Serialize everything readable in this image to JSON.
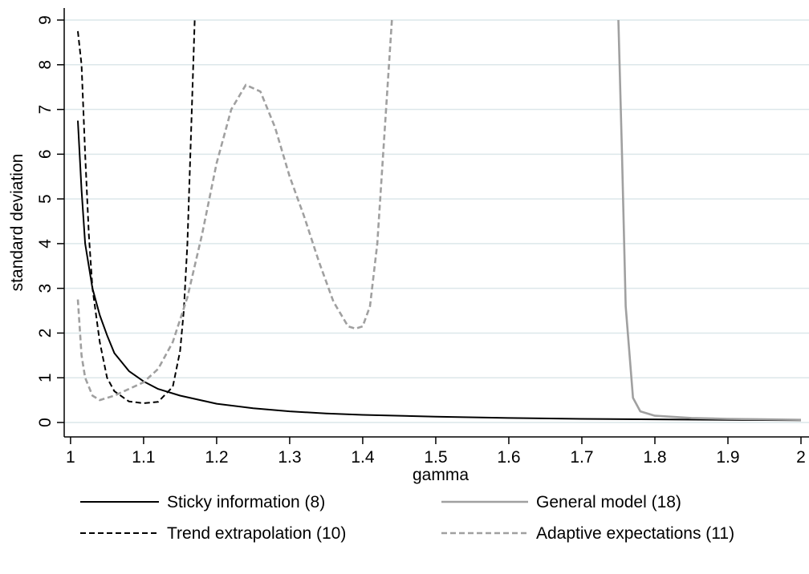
{
  "chart_data": {
    "type": "line",
    "title": "",
    "xlabel": "gamma",
    "ylabel": "standard deviation",
    "xlim": [
      1.0,
      2.0
    ],
    "ylim": [
      0,
      9
    ],
    "xticks": [
      "1",
      "1.1",
      "1.2",
      "1.3",
      "1.4",
      "1.5",
      "1.6",
      "1.7",
      "1.8",
      "1.9",
      "2"
    ],
    "yticks": [
      "0",
      "1",
      "2",
      "3",
      "4",
      "5",
      "6",
      "7",
      "8",
      "9"
    ],
    "grid": "horizontal",
    "legend_position": "bottom",
    "series": [
      {
        "name": "Sticky information (8)",
        "color": "#000000",
        "dash": "solid",
        "points": [
          [
            1.01,
            6.75
          ],
          [
            1.015,
            5.2
          ],
          [
            1.02,
            4.0
          ],
          [
            1.03,
            3.0
          ],
          [
            1.04,
            2.4
          ],
          [
            1.05,
            1.95
          ],
          [
            1.06,
            1.55
          ],
          [
            1.08,
            1.15
          ],
          [
            1.1,
            0.92
          ],
          [
            1.12,
            0.75
          ],
          [
            1.15,
            0.6
          ],
          [
            1.2,
            0.42
          ],
          [
            1.25,
            0.32
          ],
          [
            1.3,
            0.25
          ],
          [
            1.35,
            0.2
          ],
          [
            1.4,
            0.17
          ],
          [
            1.5,
            0.13
          ],
          [
            1.6,
            0.1
          ],
          [
            1.7,
            0.08
          ],
          [
            1.8,
            0.07
          ],
          [
            1.9,
            0.06
          ],
          [
            2.0,
            0.05
          ]
        ]
      },
      {
        "name": "Trend extrapolation (10)",
        "color": "#000000",
        "dash": "dashed",
        "points": [
          [
            1.01,
            8.75
          ],
          [
            1.015,
            8.0
          ],
          [
            1.02,
            6.0
          ],
          [
            1.025,
            4.2
          ],
          [
            1.03,
            3.0
          ],
          [
            1.04,
            1.8
          ],
          [
            1.05,
            1.0
          ],
          [
            1.06,
            0.7
          ],
          [
            1.08,
            0.47
          ],
          [
            1.1,
            0.43
          ],
          [
            1.12,
            0.46
          ],
          [
            1.14,
            0.8
          ],
          [
            1.15,
            1.6
          ],
          [
            1.155,
            2.5
          ],
          [
            1.16,
            4.0
          ],
          [
            1.165,
            6.5
          ],
          [
            1.17,
            9.0
          ]
        ]
      },
      {
        "name": "General model (18)",
        "color": "#a0a0a0",
        "dash": "solid",
        "points": [
          [
            1.75,
            9.0
          ],
          [
            1.755,
            6.0
          ],
          [
            1.76,
            2.6
          ],
          [
            1.77,
            0.55
          ],
          [
            1.78,
            0.25
          ],
          [
            1.8,
            0.15
          ],
          [
            1.85,
            0.1
          ],
          [
            1.9,
            0.08
          ],
          [
            1.95,
            0.07
          ],
          [
            2.0,
            0.06
          ]
        ]
      },
      {
        "name": "Adaptive expectations (11)",
        "color": "#a0a0a0",
        "dash": "dashed",
        "points": [
          [
            1.01,
            2.75
          ],
          [
            1.015,
            1.5
          ],
          [
            1.02,
            1.0
          ],
          [
            1.03,
            0.6
          ],
          [
            1.04,
            0.5
          ],
          [
            1.06,
            0.6
          ],
          [
            1.08,
            0.75
          ],
          [
            1.1,
            0.9
          ],
          [
            1.12,
            1.2
          ],
          [
            1.14,
            1.8
          ],
          [
            1.16,
            2.8
          ],
          [
            1.18,
            4.2
          ],
          [
            1.2,
            5.8
          ],
          [
            1.22,
            7.0
          ],
          [
            1.24,
            7.55
          ],
          [
            1.26,
            7.4
          ],
          [
            1.28,
            6.6
          ],
          [
            1.3,
            5.5
          ],
          [
            1.32,
            4.6
          ],
          [
            1.34,
            3.6
          ],
          [
            1.36,
            2.7
          ],
          [
            1.38,
            2.15
          ],
          [
            1.39,
            2.1
          ],
          [
            1.4,
            2.15
          ],
          [
            1.41,
            2.6
          ],
          [
            1.42,
            4.0
          ],
          [
            1.43,
            6.5
          ],
          [
            1.44,
            9.0
          ]
        ]
      }
    ]
  }
}
